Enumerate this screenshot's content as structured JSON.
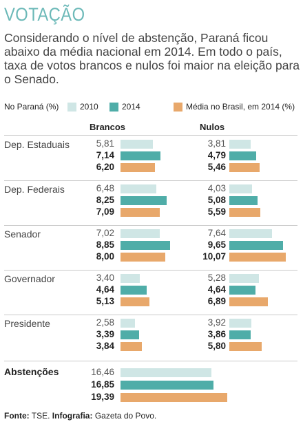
{
  "title": "VOTAÇÃO",
  "subtitle": "Considerando o nível de abstenção, Paraná ficou abaixo da média nacional em 2014. Em todo o país, taxa de votos brancos e nulos foi maior na eleição para o Senado.",
  "legend": {
    "prefix": "No Paraná (%)",
    "items": [
      {
        "label": "2010",
        "color": "#cfe6e5"
      },
      {
        "label": "2014",
        "color": "#4fada8"
      },
      {
        "label": "Média no Brasil, em 2014 (%)",
        "color": "#e8a86b"
      }
    ]
  },
  "chart_data": {
    "type": "bar",
    "orientation": "horizontal",
    "column_headers": [
      "Brancos",
      "Nulos"
    ],
    "series_colors": [
      "#cfe6e5",
      "#4fada8",
      "#e8a86b"
    ],
    "rows": [
      {
        "label": "Dep. Estaduais",
        "brancos": [
          "5,81",
          "7,14",
          "6,20"
        ],
        "nulos": [
          "3,81",
          "4,79",
          "5,46"
        ]
      },
      {
        "label": "Dep. Federais",
        "brancos": [
          "6,48",
          "8,25",
          "7,09"
        ],
        "nulos": [
          "4,03",
          "5,08",
          "5,59"
        ]
      },
      {
        "label": "Senador",
        "brancos": [
          "7,02",
          "8,85",
          "8,00"
        ],
        "nulos": [
          "7,64",
          "9,65",
          "10,07"
        ]
      },
      {
        "label": "Governador",
        "brancos": [
          "3,40",
          "4,64",
          "5,13"
        ],
        "nulos": [
          "5,28",
          "4,64",
          "6,89"
        ]
      },
      {
        "label": "Presidente",
        "brancos": [
          "2,58",
          "3,39",
          "3,84"
        ],
        "nulos": [
          "3,92",
          "3,86",
          "5,80"
        ]
      }
    ],
    "abstencoes": {
      "label": "Abstenções",
      "values": [
        "16,46",
        "16,85",
        "19,39"
      ]
    }
  },
  "footer": {
    "source_label": "Fonte:",
    "source": "TSE.",
    "infographic_label": "Infografia:",
    "infographic": "Gazeta do Povo."
  }
}
